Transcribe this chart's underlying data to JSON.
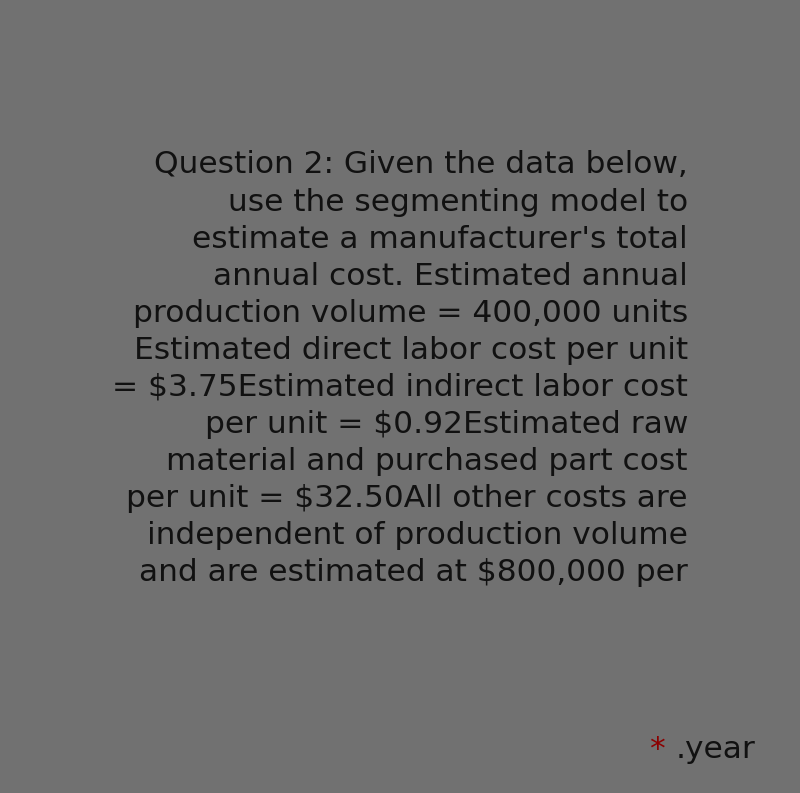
{
  "background_color": "#717171",
  "text_color": "#111111",
  "star_color": "#8B0000",
  "main_text": "Question 2: Given the data below,\nuse the segmenting model to\nestimate a manufacturer's total\nannual cost. Estimated annual\nproduction volume = 400,000 units\nEstimated direct labor cost per unit\n= $3.75Estimated indirect labor cost\nper unit = $0.92Estimated raw\nmaterial and purchased part cost\nper unit = $32.50All other costs are\nindependent of production volume\nand are estimated at $800,000 per",
  "last_line_star": "* ",
  "last_line_text": ".year",
  "font_size": 22.5,
  "fig_width": 8.0,
  "fig_height": 7.93,
  "dpi": 100
}
